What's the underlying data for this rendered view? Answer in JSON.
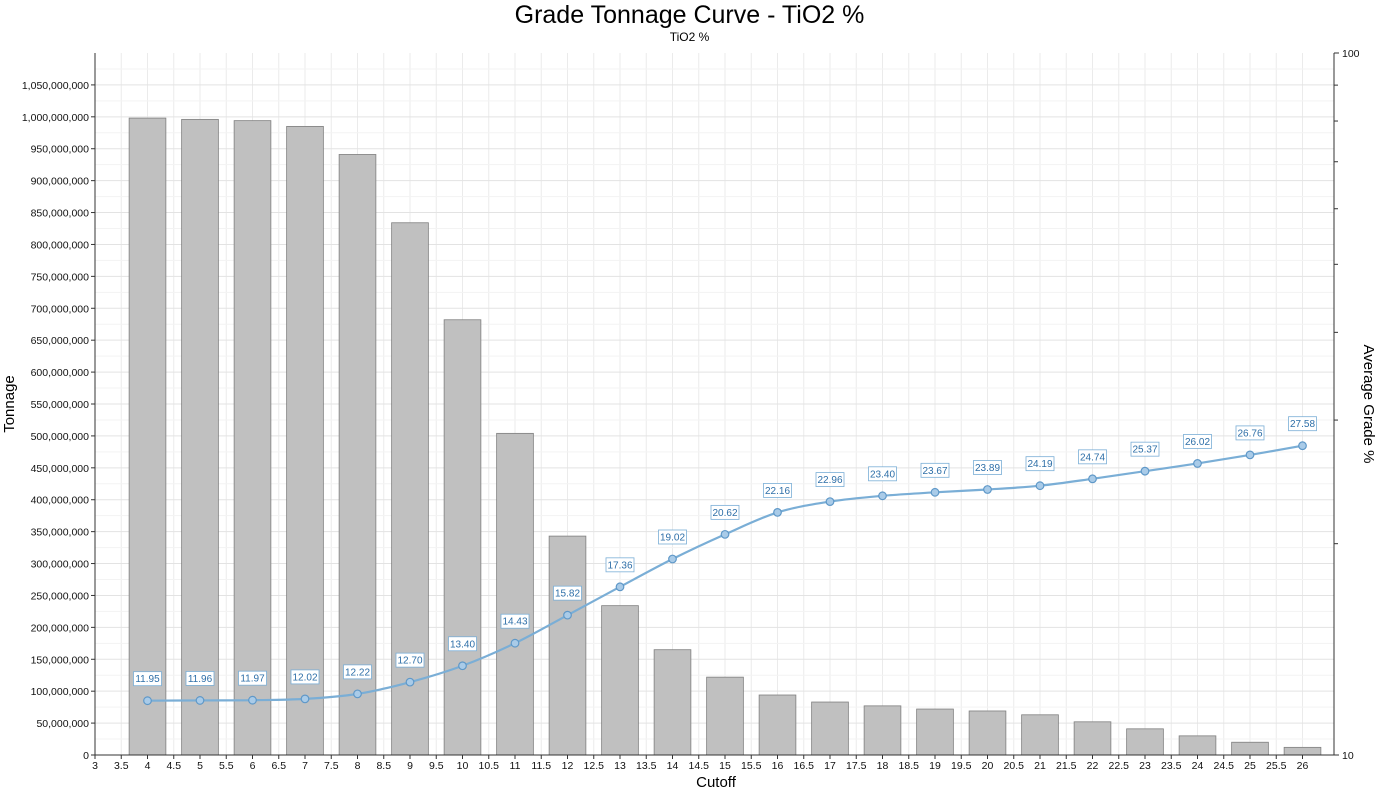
{
  "chart_data": {
    "type": "bar",
    "title": "Grade Tonnage Curve - TiO2 %",
    "subtitle": "TiO2 %",
    "xlabel": "Cutoff",
    "ylabel": "Tonnage",
    "y2label": "Average Grade %",
    "x_ticks": [
      "3",
      "3.5",
      "4",
      "4.5",
      "5",
      "5.5",
      "6",
      "6.5",
      "7",
      "7.5",
      "8",
      "8.5",
      "9",
      "9.5",
      "10",
      "10.5",
      "11",
      "11.5",
      "12",
      "12.5",
      "13",
      "13.5",
      "14",
      "14.5",
      "15",
      "15.5",
      "16",
      "16.5",
      "17",
      "17.5",
      "18",
      "18.5",
      "19",
      "19.5",
      "20",
      "20.5",
      "21",
      "21.5",
      "22",
      "22.5",
      "23",
      "23.5",
      "24",
      "24.5",
      "25",
      "25.5",
      "26"
    ],
    "xlim": [
      3,
      26.6
    ],
    "ylim": [
      0,
      1100000000
    ],
    "y_ticks": [
      "50,000,000",
      "100,000,000",
      "150,000,000",
      "200,000,000",
      "250,000,000",
      "300,000,000",
      "350,000,000",
      "400,000,000",
      "450,000,000",
      "500,000,000",
      "550,000,000",
      "600,000,000",
      "650,000,000",
      "700,000,000",
      "750,000,000",
      "800,000,000",
      "850,000,000",
      "900,000,000",
      "950,000,000",
      "1,000,000,000",
      "1,050,000,000"
    ],
    "y2_scale": "log",
    "y2lim": [
      10,
      100
    ],
    "y2_ticks": [
      "10",
      "100"
    ],
    "grid": true,
    "categories": [
      4,
      5,
      6,
      7,
      8,
      9,
      10,
      11,
      12,
      13,
      14,
      15,
      16,
      17,
      18,
      19,
      20,
      21,
      22,
      23,
      24,
      25,
      26
    ],
    "series": [
      {
        "name": "Tonnage",
        "type": "bar",
        "axis": "left",
        "color": "#c0c0c0",
        "values": [
          998000000,
          996000000,
          994000000,
          985000000,
          941000000,
          834000000,
          682000000,
          504000000,
          343000000,
          234000000,
          165000000,
          122000000,
          94000000,
          83000000,
          77000000,
          72000000,
          69000000,
          63000000,
          52000000,
          41000000,
          30000000,
          20000000,
          12000000
        ]
      },
      {
        "name": "Average Grade %",
        "type": "line",
        "axis": "right",
        "color": "#7aaed6",
        "values": [
          11.95,
          11.96,
          11.97,
          12.02,
          12.22,
          12.7,
          13.4,
          14.43,
          15.82,
          17.36,
          19.02,
          20.62,
          22.16,
          22.96,
          23.4,
          23.67,
          23.89,
          24.19,
          24.74,
          25.37,
          26.02,
          26.76,
          27.58
        ],
        "labels": [
          "11.95",
          "11.96",
          "11.97",
          "12.02",
          "12.22",
          "12.70",
          "13.40",
          "14.43",
          "15.82",
          "17.36",
          "19.02",
          "20.62",
          "22.16",
          "22.96",
          "23.40",
          "23.67",
          "23.89",
          "24.19",
          "24.74",
          "25.37",
          "26.02",
          "26.76",
          "27.58"
        ]
      }
    ]
  }
}
